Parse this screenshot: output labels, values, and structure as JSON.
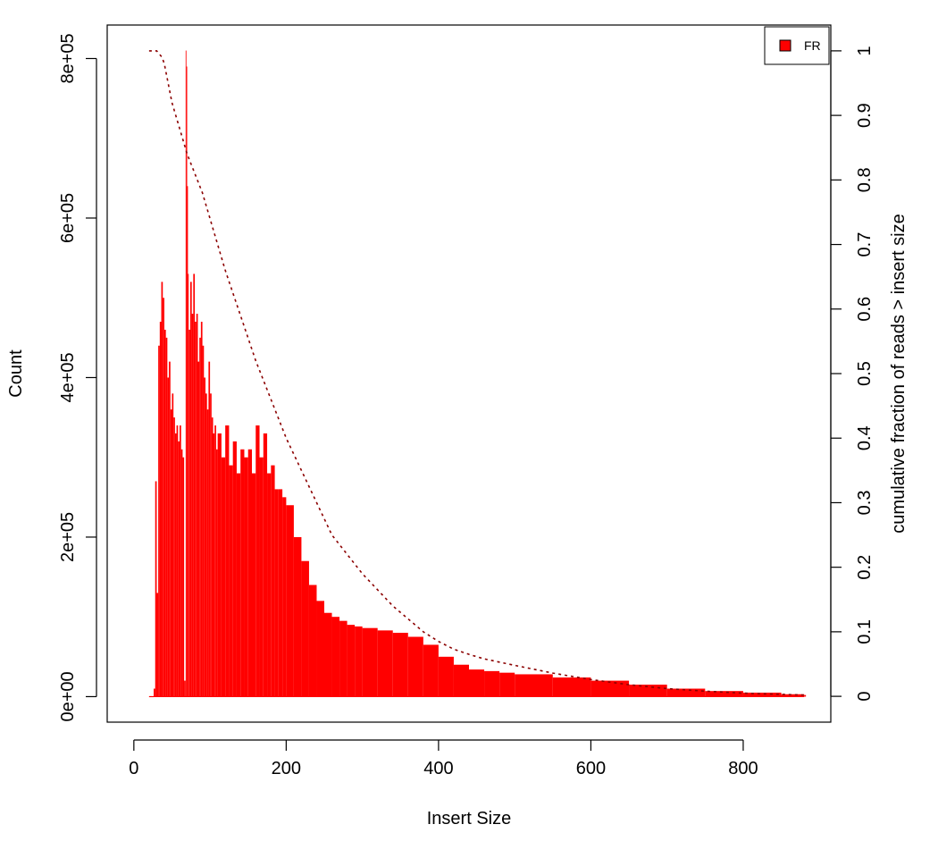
{
  "chart_data": {
    "type": "bar",
    "xlabel": "Insert Size",
    "ylabel": "Count",
    "y2label": "cumulative fraction of reads > insert size",
    "xlim": [
      -35,
      915
    ],
    "ylim": [
      -32000,
      842000
    ],
    "y2lim": [
      -0.04,
      1.04
    ],
    "x_ticks": [
      0,
      200,
      400,
      600,
      800
    ],
    "x_tick_labels": [
      "0",
      "200",
      "400",
      "600",
      "800"
    ],
    "y_ticks": [
      0,
      200000,
      400000,
      600000,
      800000
    ],
    "y_tick_labels": [
      "0e+00",
      "2e+05",
      "4e+05",
      "6e+05",
      "8e+05"
    ],
    "y2_ticks": [
      0,
      0.1,
      0.2,
      0.3,
      0.4,
      0.5,
      0.6,
      0.7,
      0.8,
      0.9,
      1
    ],
    "y2_tick_labels": [
      "0",
      "0.1",
      "0.2",
      "0.3",
      "0.4",
      "0.5",
      "0.6",
      "0.7",
      "0.8",
      "0.9",
      "1"
    ],
    "legend": {
      "position": "top-right",
      "entries": [
        {
          "name": "FR",
          "color": "#ff0000"
        }
      ]
    },
    "grid": false,
    "series": [
      {
        "name": "FR",
        "kind": "bar",
        "color": "#ff0000",
        "x": [
          20,
          24,
          26,
          28,
          30,
          32,
          34,
          36,
          38,
          40,
          42,
          44,
          46,
          48,
          50,
          52,
          54,
          56,
          58,
          60,
          62,
          64,
          66,
          68,
          69,
          70,
          71,
          72,
          74,
          76,
          78,
          80,
          82,
          84,
          86,
          88,
          90,
          92,
          94,
          96,
          98,
          100,
          102,
          104,
          106,
          108,
          110,
          115,
          120,
          125,
          130,
          135,
          140,
          145,
          150,
          155,
          160,
          165,
          170,
          175,
          180,
          185,
          190,
          195,
          200,
          210,
          220,
          230,
          240,
          250,
          260,
          270,
          280,
          290,
          300,
          320,
          340,
          360,
          380,
          400,
          420,
          440,
          460,
          480,
          500,
          550,
          600,
          650,
          700,
          750,
          800,
          850,
          880
        ],
        "values": [
          0,
          0,
          10000,
          270000,
          130000,
          440000,
          470000,
          520000,
          500000,
          460000,
          450000,
          400000,
          420000,
          360000,
          380000,
          350000,
          330000,
          340000,
          320000,
          340000,
          310000,
          300000,
          20000,
          810000,
          790000,
          640000,
          530000,
          460000,
          520000,
          480000,
          530000,
          470000,
          480000,
          420000,
          450000,
          470000,
          440000,
          400000,
          380000,
          360000,
          420000,
          380000,
          350000,
          330000,
          340000,
          310000,
          330000,
          300000,
          340000,
          290000,
          320000,
          280000,
          310000,
          300000,
          310000,
          280000,
          340000,
          300000,
          330000,
          280000,
          290000,
          260000,
          260000,
          250000,
          240000,
          200000,
          170000,
          140000,
          120000,
          105000,
          100000,
          95000,
          90000,
          88000,
          86000,
          83000,
          80000,
          75000,
          65000,
          50000,
          40000,
          34000,
          32000,
          30000,
          28000,
          24000,
          20000,
          15000,
          10000,
          7000,
          5000,
          3000,
          2000
        ]
      },
      {
        "name": "",
        "kind": "line",
        "axis": "right",
        "color": "#8b0000",
        "dash": "dotted",
        "x": [
          20,
          30,
          37,
          40,
          45,
          50,
          60,
          70,
          80,
          90,
          100,
          120,
          140,
          160,
          180,
          200,
          220,
          240,
          260,
          280,
          300,
          320,
          340,
          360,
          380,
          400,
          420,
          440,
          460,
          500,
          550,
          600,
          650,
          700,
          750,
          800,
          850,
          880
        ],
        "values": [
          1,
          1,
          0.99,
          0.98,
          0.95,
          0.92,
          0.88,
          0.84,
          0.81,
          0.78,
          0.74,
          0.66,
          0.59,
          0.52,
          0.46,
          0.4,
          0.35,
          0.3,
          0.25,
          0.22,
          0.19,
          0.165,
          0.14,
          0.12,
          0.1,
          0.085,
          0.073,
          0.065,
          0.058,
          0.048,
          0.036,
          0.026,
          0.018,
          0.012,
          0.008,
          0.005,
          0.003,
          0.002
        ]
      }
    ]
  }
}
